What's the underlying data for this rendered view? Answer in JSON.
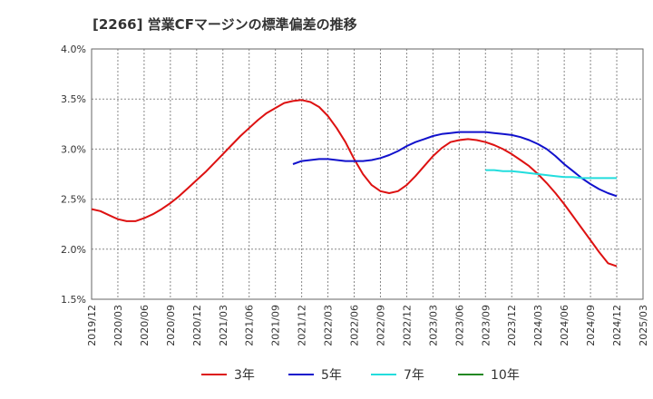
{
  "chart_data": {
    "type": "line",
    "title": "[2266]  営業CFマージンの標準偏差の推移",
    "xlabel": "",
    "ylabel": "",
    "ylim": [
      1.5,
      4.0
    ],
    "yticks": [
      "1.5%",
      "2.0%",
      "2.5%",
      "3.0%",
      "3.5%",
      "4.0%"
    ],
    "xticks": [
      "2019/12",
      "2020/03",
      "2020/06",
      "2020/09",
      "2020/12",
      "2021/03",
      "2021/06",
      "2021/09",
      "2021/12",
      "2022/03",
      "2022/06",
      "2022/09",
      "2022/12",
      "2023/03",
      "2023/06",
      "2023/09",
      "2023/12",
      "2024/03",
      "2024/06",
      "2024/09",
      "2024/12",
      "2025/03"
    ],
    "grid": true,
    "legend_position": "bottom",
    "series": [
      {
        "name": "3年",
        "color": "#dd1111",
        "points": [
          [
            "2019/12",
            2.4
          ],
          [
            "2020/01",
            2.38
          ],
          [
            "2020/02",
            2.34
          ],
          [
            "2020/03",
            2.3
          ],
          [
            "2020/04",
            2.28
          ],
          [
            "2020/05",
            2.28
          ],
          [
            "2020/06",
            2.31
          ],
          [
            "2020/07",
            2.35
          ],
          [
            "2020/08",
            2.4
          ],
          [
            "2020/09",
            2.46
          ],
          [
            "2020/10",
            2.53
          ],
          [
            "2020/11",
            2.61
          ],
          [
            "2020/12",
            2.69
          ],
          [
            "2021/01",
            2.77
          ],
          [
            "2021/02",
            2.86
          ],
          [
            "2021/03",
            2.95
          ],
          [
            "2021/04",
            3.04
          ],
          [
            "2021/05",
            3.13
          ],
          [
            "2021/06",
            3.21
          ],
          [
            "2021/07",
            3.29
          ],
          [
            "2021/08",
            3.36
          ],
          [
            "2021/09",
            3.41
          ],
          [
            "2021/10",
            3.46
          ],
          [
            "2021/11",
            3.48
          ],
          [
            "2021/12",
            3.49
          ],
          [
            "2022/01",
            3.47
          ],
          [
            "2022/02",
            3.42
          ],
          [
            "2022/03",
            3.33
          ],
          [
            "2022/04",
            3.21
          ],
          [
            "2022/05",
            3.07
          ],
          [
            "2022/06",
            2.9
          ],
          [
            "2022/07",
            2.75
          ],
          [
            "2022/08",
            2.64
          ],
          [
            "2022/09",
            2.58
          ],
          [
            "2022/10",
            2.56
          ],
          [
            "2022/11",
            2.58
          ],
          [
            "2022/12",
            2.64
          ],
          [
            "2023/01",
            2.73
          ],
          [
            "2023/02",
            2.83
          ],
          [
            "2023/03",
            2.93
          ],
          [
            "2023/04",
            3.01
          ],
          [
            "2023/05",
            3.07
          ],
          [
            "2023/06",
            3.09
          ],
          [
            "2023/07",
            3.1
          ],
          [
            "2023/08",
            3.09
          ],
          [
            "2023/09",
            3.07
          ],
          [
            "2023/10",
            3.04
          ],
          [
            "2023/11",
            3.0
          ],
          [
            "2023/12",
            2.95
          ],
          [
            "2024/01",
            2.89
          ],
          [
            "2024/02",
            2.83
          ],
          [
            "2024/03",
            2.75
          ],
          [
            "2024/04",
            2.66
          ],
          [
            "2024/05",
            2.56
          ],
          [
            "2024/06",
            2.45
          ],
          [
            "2024/07",
            2.33
          ],
          [
            "2024/08",
            2.21
          ],
          [
            "2024/09",
            2.09
          ],
          [
            "2024/10",
            1.97
          ],
          [
            "2024/11",
            1.86
          ],
          [
            "2024/12",
            1.83
          ]
        ]
      },
      {
        "name": "5年",
        "color": "#1111cc",
        "points": [
          [
            "2021/11",
            2.85
          ],
          [
            "2021/12",
            2.88
          ],
          [
            "2022/01",
            2.89
          ],
          [
            "2022/02",
            2.9
          ],
          [
            "2022/03",
            2.9
          ],
          [
            "2022/04",
            2.89
          ],
          [
            "2022/05",
            2.88
          ],
          [
            "2022/06",
            2.88
          ],
          [
            "2022/07",
            2.88
          ],
          [
            "2022/08",
            2.89
          ],
          [
            "2022/09",
            2.91
          ],
          [
            "2022/10",
            2.94
          ],
          [
            "2022/11",
            2.98
          ],
          [
            "2022/12",
            3.03
          ],
          [
            "2023/01",
            3.07
          ],
          [
            "2023/02",
            3.1
          ],
          [
            "2023/03",
            3.13
          ],
          [
            "2023/04",
            3.15
          ],
          [
            "2023/05",
            3.16
          ],
          [
            "2023/06",
            3.17
          ],
          [
            "2023/07",
            3.17
          ],
          [
            "2023/08",
            3.17
          ],
          [
            "2023/09",
            3.17
          ],
          [
            "2023/10",
            3.16
          ],
          [
            "2023/11",
            3.15
          ],
          [
            "2023/12",
            3.14
          ],
          [
            "2024/01",
            3.12
          ],
          [
            "2024/02",
            3.09
          ],
          [
            "2024/03",
            3.05
          ],
          [
            "2024/04",
            3.0
          ],
          [
            "2024/05",
            2.93
          ],
          [
            "2024/06",
            2.85
          ],
          [
            "2024/07",
            2.78
          ],
          [
            "2024/08",
            2.71
          ],
          [
            "2024/09",
            2.65
          ],
          [
            "2024/10",
            2.6
          ],
          [
            "2024/11",
            2.56
          ],
          [
            "2024/12",
            2.53
          ]
        ]
      },
      {
        "name": "7年",
        "color": "#22dddd",
        "points": [
          [
            "2023/09",
            2.79
          ],
          [
            "2023/10",
            2.79
          ],
          [
            "2023/11",
            2.78
          ],
          [
            "2023/12",
            2.78
          ],
          [
            "2024/01",
            2.77
          ],
          [
            "2024/02",
            2.76
          ],
          [
            "2024/03",
            2.75
          ],
          [
            "2024/04",
            2.74
          ],
          [
            "2024/05",
            2.73
          ],
          [
            "2024/06",
            2.72
          ],
          [
            "2024/07",
            2.72
          ],
          [
            "2024/08",
            2.71
          ],
          [
            "2024/09",
            2.71
          ],
          [
            "2024/10",
            2.71
          ],
          [
            "2024/11",
            2.71
          ],
          [
            "2024/12",
            2.71
          ]
        ]
      },
      {
        "name": "10年",
        "color": "#228822",
        "points": []
      }
    ]
  }
}
